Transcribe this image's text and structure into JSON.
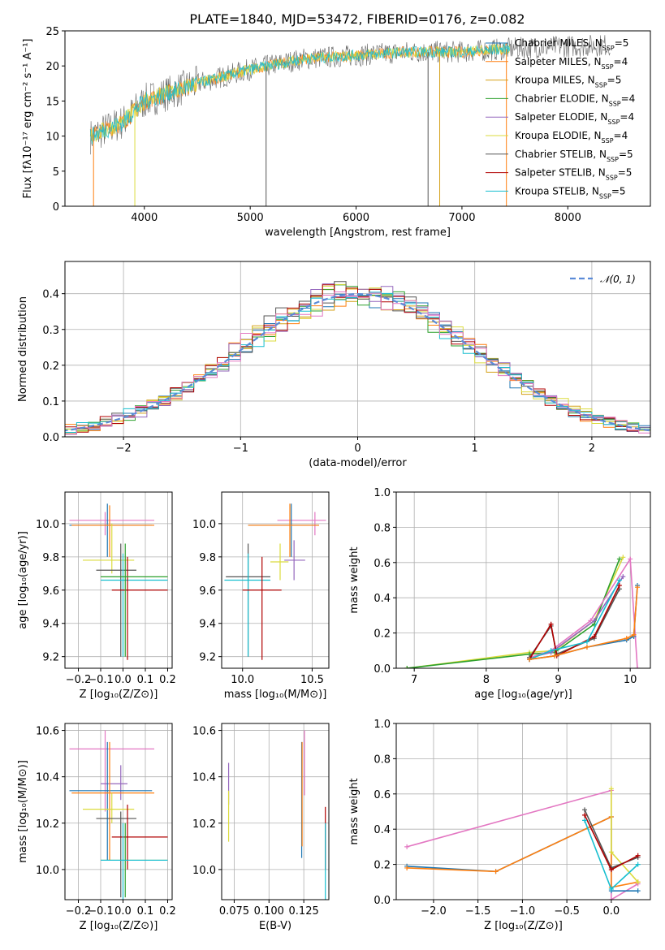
{
  "title": "PLATE=1840, MJD=53472, FIBERID=0176, z=0.082",
  "colors": {
    "Chabrier MILES": "#1f77b4",
    "Salpeter MILES": "#ff7f0e",
    "Kroupa MILES": "#d4a017",
    "Chabrier ELODIE": "#2ca02c",
    "Salpeter ELODIE": "#9467bd",
    "Kroupa ELODIE": "#dbdb3d",
    "Chabrier STELIB": "#555555",
    "Salpeter STELIB": "#b00000",
    "Kroupa STELIB": "#17becf",
    "pink": "#e377c2",
    "orange2": "#ec8a2f",
    "gaussian": "#5b8bd8",
    "grid": "#b0b0b0"
  },
  "legend": [
    {
      "label": "Chabrier MILES, N",
      "sub": "SSP",
      "tail": "=5",
      "color_key": "Chabrier MILES"
    },
    {
      "label": "Salpeter MILES, N",
      "sub": "SSP",
      "tail": "=4",
      "color_key": "Salpeter MILES"
    },
    {
      "label": "Kroupa MILES, N",
      "sub": "SSP",
      "tail": "=5",
      "color_key": "Kroupa MILES"
    },
    {
      "label": "Chabrier ELODIE, N",
      "sub": "SSP",
      "tail": "=4",
      "color_key": "Chabrier ELODIE"
    },
    {
      "label": "Salpeter ELODIE, N",
      "sub": "SSP",
      "tail": "=4",
      "color_key": "Salpeter ELODIE"
    },
    {
      "label": "Kroupa ELODIE, N",
      "sub": "SSP",
      "tail": "=4",
      "color_key": "Kroupa ELODIE"
    },
    {
      "label": "Chabrier STELIB, N",
      "sub": "SSP",
      "tail": "=5",
      "color_key": "Chabrier STELIB"
    },
    {
      "label": "Salpeter STELIB, N",
      "sub": "SSP",
      "tail": "=5",
      "color_key": "Salpeter STELIB"
    },
    {
      "label": "Kroupa STELIB, N",
      "sub": "SSP",
      "tail": "=5",
      "color_key": "Kroupa STELIB"
    }
  ],
  "chart_data": [
    {
      "id": "spectrum",
      "type": "line",
      "xlabel": "wavelength [Angstrom, rest frame]",
      "ylabel": "Flux [fλ10⁻¹⁷ erg cm⁻² s⁻¹ A⁻¹]",
      "xlim": [
        3250,
        8780
      ],
      "ylim": [
        0,
        25
      ],
      "xticks": [
        4000,
        5000,
        6000,
        7000,
        8000
      ],
      "yticks": [
        0,
        5,
        10,
        15,
        20,
        25
      ],
      "continuum": [
        [
          3500,
          10
        ],
        [
          3800,
          12
        ],
        [
          4000,
          15
        ],
        [
          4500,
          17.5
        ],
        [
          5000,
          19.5
        ],
        [
          5500,
          21
        ],
        [
          6000,
          21.5
        ],
        [
          6500,
          22
        ],
        [
          7000,
          22
        ],
        [
          7500,
          22.5
        ],
        [
          8000,
          22.8
        ],
        [
          8400,
          23
        ]
      ],
      "x_end_model": 7450,
      "x_end_data": 8400
    },
    {
      "id": "residuals",
      "type": "histogram",
      "xlabel": "(data-model)/error",
      "ylabel": "Normed distribution",
      "xlim": [
        -2.5,
        2.5
      ],
      "ylim": [
        0,
        0.49
      ],
      "xticks": [
        -2,
        -1,
        0,
        1,
        2
      ],
      "yticks": [
        0.0,
        0.1,
        0.2,
        0.3,
        0.4
      ],
      "legend_label": "𝒩(0, 1)",
      "bin_width": 0.1
    },
    {
      "id": "age_vs_Z",
      "type": "errorbar",
      "xlabel": "Z [log₁₀(Z/Z⊙)]",
      "ylabel": "age  [log₁₀(age/yr)]",
      "xlim": [
        -0.26,
        0.22
      ],
      "ylim": [
        9.13,
        10.19
      ],
      "xticks": [
        -0.2,
        -0.1,
        0.0,
        0.1,
        0.2
      ],
      "yticks": [
        9.2,
        9.4,
        9.6,
        9.8,
        10.0
      ],
      "points": [
        {
          "c": "pink",
          "x": -0.08,
          "xe": [
            -0.24,
            0.14
          ],
          "y": 10.02,
          "ye": [
            9.93,
            10.07
          ]
        },
        {
          "c": "Chabrier MILES",
          "x": -0.07,
          "xe": [
            -0.24,
            0.13
          ],
          "y": 9.99,
          "ye": [
            9.8,
            10.12
          ]
        },
        {
          "c": "Salpeter MILES",
          "x": -0.06,
          "xe": [
            -0.23,
            0.14
          ],
          "y": 9.99,
          "ye": [
            9.8,
            10.11
          ]
        },
        {
          "c": "Kroupa ELODIE",
          "x": -0.05,
          "xe": [
            -0.18,
            0.05
          ],
          "y": 9.78,
          "ye": [
            9.7,
            10.0
          ]
        },
        {
          "c": "Chabrier STELIB",
          "x": -0.01,
          "xe": [
            -0.12,
            0.06
          ],
          "y": 9.72,
          "ye": [
            9.2,
            9.88
          ]
        },
        {
          "c": "Kroupa STELIB",
          "x": 0.0,
          "xe": [
            -0.1,
            0.2
          ],
          "y": 9.66,
          "ye": [
            9.2,
            9.82
          ]
        },
        {
          "c": "Salpeter STELIB",
          "x": 0.02,
          "xe": [
            -0.05,
            0.2
          ],
          "y": 9.6,
          "ye": [
            9.18,
            9.8
          ]
        },
        {
          "c": "Chabrier ELODIE",
          "x": 0.01,
          "xe": [
            -0.1,
            0.2
          ],
          "y": 9.68,
          "ye": [
            9.2,
            9.88
          ]
        }
      ]
    },
    {
      "id": "age_vs_mass",
      "type": "errorbar",
      "xlabel": "mass [log₁₀(M/M⊙)]",
      "ylabel": "",
      "xlim": [
        9.85,
        10.62
      ],
      "ylim": [
        9.13,
        10.19
      ],
      "xticks": [
        10.0,
        10.5
      ],
      "yticks": [
        9.2,
        9.4,
        9.6,
        9.8,
        10.0
      ],
      "points": [
        {
          "c": "pink",
          "x": 10.52,
          "xe": [
            10.25,
            10.6
          ],
          "y": 10.02,
          "ye": [
            9.93,
            10.07
          ]
        },
        {
          "c": "Chabrier MILES",
          "x": 10.35,
          "xe": [
            10.04,
            10.55
          ],
          "y": 9.99,
          "ye": [
            9.8,
            10.12
          ]
        },
        {
          "c": "Salpeter MILES",
          "x": 10.34,
          "xe": [
            10.04,
            10.55
          ],
          "y": 9.99,
          "ye": [
            9.8,
            10.12
          ]
        },
        {
          "c": "Salpeter ELODIE",
          "x": 10.37,
          "xe": [
            10.3,
            10.45
          ],
          "y": 9.78,
          "ye": [
            9.66,
            9.9
          ]
        },
        {
          "c": "Kroupa ELODIE",
          "x": 10.27,
          "xe": [
            10.2,
            10.33
          ],
          "y": 9.77,
          "ye": [
            9.66,
            9.88
          ]
        },
        {
          "c": "Chabrier STELIB",
          "x": 10.04,
          "xe": [
            9.88,
            10.2
          ],
          "y": 9.68,
          "ye": [
            9.2,
            9.88
          ]
        },
        {
          "c": "Kroupa STELIB",
          "x": 10.04,
          "xe": [
            9.87,
            10.2
          ],
          "y": 9.66,
          "ye": [
            9.2,
            9.82
          ]
        },
        {
          "c": "Salpeter STELIB",
          "x": 10.14,
          "xe": [
            10.0,
            10.28
          ],
          "y": 9.6,
          "ye": [
            9.18,
            9.8
          ]
        }
      ]
    },
    {
      "id": "weight_vs_age",
      "type": "line",
      "xlabel": "age  [log₁₀(age/yr)]",
      "ylabel": "mass weight",
      "xlim": [
        6.75,
        10.28
      ],
      "ylim": [
        0,
        1.0
      ],
      "xticks": [
        7,
        8,
        9,
        10
      ],
      "yticks": [
        0.0,
        0.2,
        0.4,
        0.6,
        0.8,
        1.0
      ],
      "series": [
        {
          "c": "Kroupa ELODIE",
          "pts": [
            [
              6.9,
              0.0
            ],
            [
              8.6,
              0.09
            ],
            [
              8.95,
              0.1
            ],
            [
              9.5,
              0.27
            ],
            [
              9.9,
              0.63
            ]
          ]
        },
        {
          "c": "Chabrier ELODIE",
          "pts": [
            [
              6.9,
              0.0
            ],
            [
              8.6,
              0.08
            ],
            [
              8.95,
              0.09
            ],
            [
              9.5,
              0.25
            ],
            [
              9.85,
              0.62
            ]
          ]
        },
        {
          "c": "Salpeter ELODIE",
          "pts": [
            [
              8.6,
              0.06
            ],
            [
              8.9,
              0.09
            ],
            [
              9.5,
              0.27
            ],
            [
              9.9,
              0.52
            ]
          ]
        },
        {
          "c": "pink",
          "pts": [
            [
              8.6,
              0.06
            ],
            [
              8.9,
              0.1
            ],
            [
              9.45,
              0.27
            ],
            [
              10.0,
              0.62
            ],
            [
              10.1,
              0.0
            ]
          ]
        },
        {
          "c": "Chabrier STELIB",
          "pts": [
            [
              8.6,
              0.06
            ],
            [
              8.9,
              0.24
            ],
            [
              8.98,
              0.08
            ],
            [
              9.5,
              0.17
            ],
            [
              9.85,
              0.45
            ]
          ]
        },
        {
          "c": "Salpeter STELIB",
          "pts": [
            [
              8.6,
              0.05
            ],
            [
              8.9,
              0.25
            ],
            [
              8.98,
              0.07
            ],
            [
              9.5,
              0.18
            ],
            [
              9.85,
              0.47
            ]
          ]
        },
        {
          "c": "Kroupa STELIB",
          "pts": [
            [
              8.6,
              0.05
            ],
            [
              8.9,
              0.1
            ],
            [
              9.4,
              0.15
            ],
            [
              9.85,
              0.5
            ]
          ]
        },
        {
          "c": "Chabrier MILES",
          "pts": [
            [
              8.6,
              0.05
            ],
            [
              8.95,
              0.07
            ],
            [
              9.4,
              0.12
            ],
            [
              9.95,
              0.16
            ],
            [
              10.05,
              0.18
            ],
            [
              10.1,
              0.47
            ]
          ]
        },
        {
          "c": "Salpeter MILES",
          "pts": [
            [
              8.6,
              0.05
            ],
            [
              8.95,
              0.07
            ],
            [
              9.4,
              0.12
            ],
            [
              9.95,
              0.17
            ],
            [
              10.05,
              0.19
            ],
            [
              10.1,
              0.46
            ]
          ]
        }
      ]
    },
    {
      "id": "mass_vs_Z",
      "type": "errorbar",
      "xlabel": "Z [log₁₀(Z/Z⊙)]",
      "ylabel": "mass [log₁₀(M/M⊙)]",
      "xlim": [
        -0.26,
        0.22
      ],
      "ylim": [
        9.87,
        10.63
      ],
      "xticks": [
        -0.2,
        -0.1,
        0.0,
        0.1,
        0.2
      ],
      "yticks": [
        10.0,
        10.2,
        10.4,
        10.6
      ],
      "points": [
        {
          "c": "pink",
          "x": -0.08,
          "xe": [
            -0.24,
            0.14
          ],
          "y": 10.52,
          "ye": [
            10.25,
            10.6
          ]
        },
        {
          "c": "Salpeter ELODIE",
          "x": -0.01,
          "xe": [
            -0.1,
            0.02
          ],
          "y": 10.37,
          "ye": [
            10.3,
            10.45
          ]
        },
        {
          "c": "Chabrier MILES",
          "x": -0.07,
          "xe": [
            -0.24,
            0.13
          ],
          "y": 10.34,
          "ye": [
            10.04,
            10.55
          ]
        },
        {
          "c": "Salpeter MILES",
          "x": -0.06,
          "xe": [
            -0.23,
            0.14
          ],
          "y": 10.33,
          "ye": [
            10.04,
            10.55
          ]
        },
        {
          "c": "Kroupa ELODIE",
          "x": -0.05,
          "xe": [
            -0.18,
            0.05
          ],
          "y": 10.26,
          "ye": [
            10.2,
            10.33
          ]
        },
        {
          "c": "Chabrier STELIB",
          "x": -0.01,
          "xe": [
            -0.12,
            0.06
          ],
          "y": 10.22,
          "ye": [
            9.88,
            10.25
          ]
        },
        {
          "c": "Salpeter STELIB",
          "x": 0.02,
          "xe": [
            -0.05,
            0.2
          ],
          "y": 10.14,
          "ye": [
            10.0,
            10.28
          ]
        },
        {
          "c": "Chabrier ELODIE",
          "x": 0.01,
          "xe": [
            -0.1,
            0.2
          ],
          "y": 10.04,
          "ye": [
            9.88,
            10.2
          ]
        },
        {
          "c": "Kroupa STELIB",
          "x": 0.0,
          "xe": [
            -0.1,
            0.2
          ],
          "y": 10.04,
          "ye": [
            9.87,
            10.2
          ]
        }
      ]
    },
    {
      "id": "EBV",
      "type": "errorbar",
      "xlabel": "E(B-V)",
      "ylabel": "",
      "xlim": [
        0.066,
        0.143
      ],
      "ylim": [
        9.87,
        10.63
      ],
      "xticks": [
        0.075,
        0.1,
        0.125
      ],
      "xticklabels": [
        "0.075",
        "0.100",
        "0.125"
      ],
      "yticks": [
        10.0,
        10.2,
        10.4,
        10.6
      ],
      "points": [
        {
          "c": "Salpeter ELODIE",
          "x": 0.071,
          "xe": [
            0.071,
            0.071
          ],
          "y": 10.37,
          "ye": [
            10.28,
            10.46
          ]
        },
        {
          "c": "Kroupa ELODIE",
          "x": 0.071,
          "xe": [
            0.071,
            0.071
          ],
          "y": 10.26,
          "ye": [
            10.12,
            10.34
          ]
        },
        {
          "c": "Chabrier MILES",
          "x": 0.1235,
          "xe": [
            0.1235,
            0.1235
          ],
          "y": 10.34,
          "ye": [
            10.05,
            10.55
          ]
        },
        {
          "c": "Salpeter MILES",
          "x": 0.1238,
          "xe": [
            0.1238,
            0.1238
          ],
          "y": 10.33,
          "ye": [
            10.1,
            10.55
          ]
        },
        {
          "c": "pink",
          "x": 0.1255,
          "xe": [
            0.1255,
            0.1255
          ],
          "y": 10.52,
          "ye": [
            10.32,
            10.6
          ]
        },
        {
          "c": "Salpeter STELIB",
          "x": 0.1405,
          "xe": [
            0.1405,
            0.1405
          ],
          "y": 10.14,
          "ye": [
            10.0,
            10.27
          ]
        },
        {
          "c": "Kroupa STELIB",
          "x": 0.1405,
          "xe": [
            0.1405,
            0.1405
          ],
          "y": 10.04,
          "ye": [
            9.87,
            10.2
          ]
        }
      ]
    },
    {
      "id": "weight_vs_Z",
      "type": "line",
      "xlabel": "Z [log₁₀(Z/Z⊙)]",
      "ylabel": "mass weight",
      "xlim": [
        -2.42,
        0.44
      ],
      "ylim": [
        0,
        1.0
      ],
      "xticks": [
        -2.0,
        -1.5,
        -1.0,
        -0.5,
        0.0
      ],
      "yticks": [
        0.0,
        0.2,
        0.4,
        0.6,
        0.8,
        1.0
      ],
      "series": [
        {
          "c": "pink",
          "pts": [
            [
              -2.3,
              0.3
            ],
            [
              0.0,
              0.62
            ],
            [
              0.0,
              0.0
            ],
            [
              0.3,
              0.09
            ]
          ]
        },
        {
          "c": "Chabrier MILES",
          "pts": [
            [
              -2.3,
              0.19
            ],
            [
              -1.3,
              0.16
            ],
            [
              0.0,
              0.47
            ],
            [
              0.0,
              0.05
            ],
            [
              0.3,
              0.05
            ]
          ]
        },
        {
          "c": "Salpeter MILES",
          "pts": [
            [
              -2.3,
              0.18
            ],
            [
              -1.3,
              0.16
            ],
            [
              0.0,
              0.47
            ],
            [
              0.0,
              0.07
            ],
            [
              0.3,
              0.1
            ]
          ]
        },
        {
          "c": "Kroupa ELODIE",
          "pts": [
            [
              0.0,
              0.63
            ],
            [
              0.0,
              0.27
            ],
            [
              0.3,
              0.1
            ]
          ]
        },
        {
          "c": "Chabrier STELIB",
          "pts": [
            [
              -0.3,
              0.51
            ],
            [
              0.0,
              0.18
            ],
            [
              0.3,
              0.24
            ]
          ]
        },
        {
          "c": "Salpeter STELIB",
          "pts": [
            [
              -0.3,
              0.48
            ],
            [
              0.0,
              0.17
            ],
            [
              0.3,
              0.25
            ]
          ]
        },
        {
          "c": "Kroupa STELIB",
          "pts": [
            [
              -0.3,
              0.45
            ],
            [
              0.0,
              0.06
            ],
            [
              0.3,
              0.2
            ]
          ]
        }
      ]
    }
  ]
}
